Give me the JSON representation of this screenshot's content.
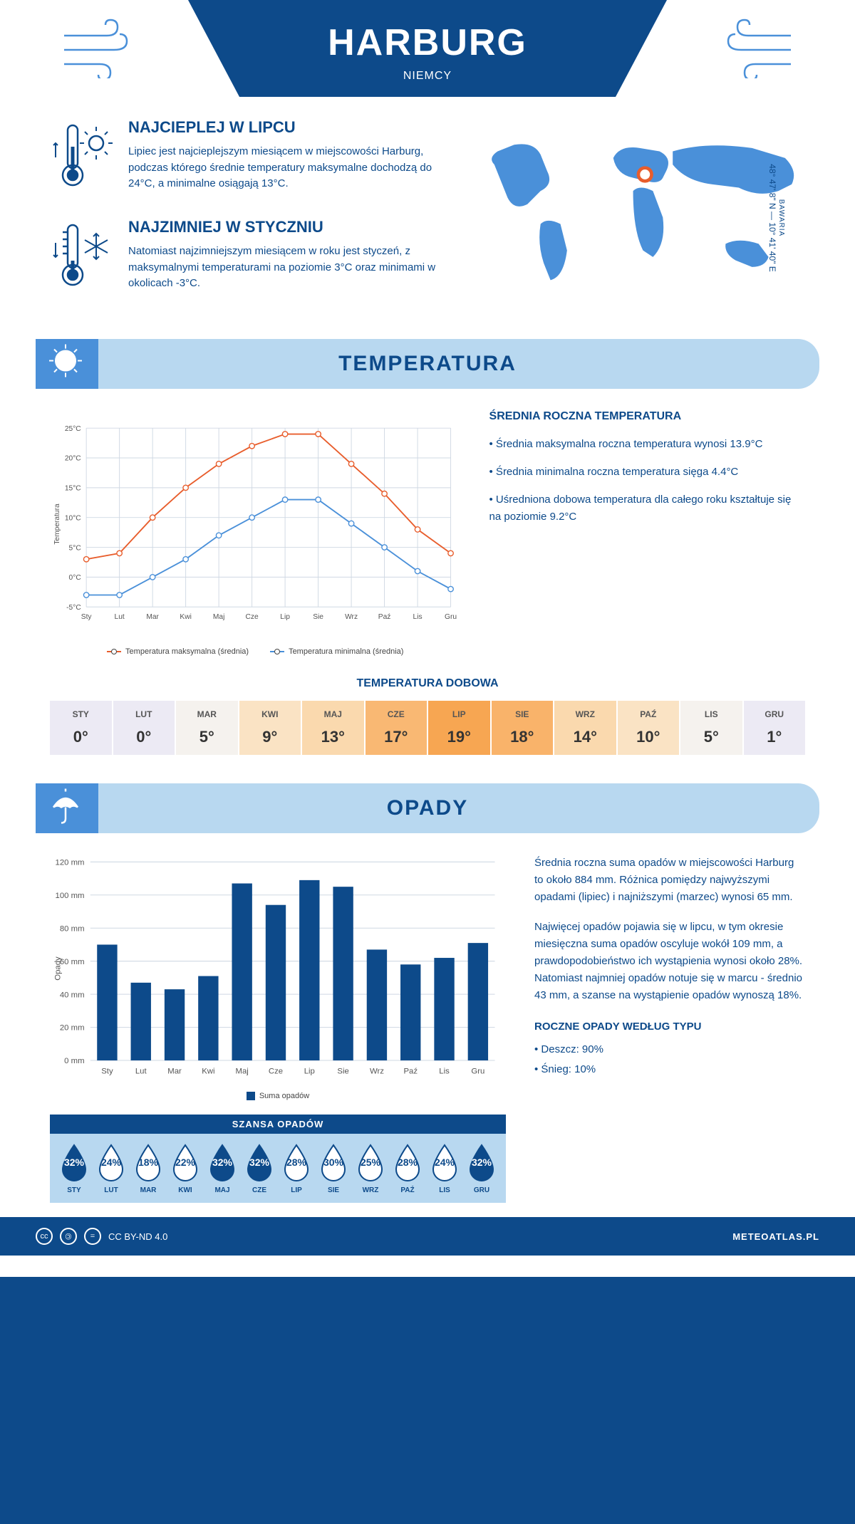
{
  "colors": {
    "primary": "#0d4a8a",
    "accent_light": "#b8d8f0",
    "accent_mid": "#4a90d9",
    "line_max": "#e85d2c",
    "line_min": "#4a90d9",
    "bar_fill": "#0d4a8a",
    "grid": "#cfd8e3",
    "map_land": "#4a90d9",
    "marker": "#e85d2c"
  },
  "header": {
    "city": "HARBURG",
    "country": "NIEMCY"
  },
  "intro": {
    "hot": {
      "title": "NAJCIEPLEJ W LIPCU",
      "body": "Lipiec jest najcieplejszym miesiącem w miejscowości Harburg, podczas którego średnie temperatury maksymalne dochodzą do 24°C, a minimalne osiągają 13°C."
    },
    "cold": {
      "title": "NAJZIMNIEJ W STYCZNIU",
      "body": "Natomiast najzimniejszym miesiącem w roku jest styczeń, z maksymalnymi temperaturami na poziomie 3°C oraz minimami w okolicach -3°C."
    },
    "coords_line": "48° 47' 8\" N — 10° 41' 40\" E",
    "region": "BAWARIA"
  },
  "temp_section": {
    "title": "TEMPERATURA",
    "chart": {
      "type": "line",
      "months": [
        "Sty",
        "Lut",
        "Mar",
        "Kwi",
        "Maj",
        "Cze",
        "Lip",
        "Sie",
        "Wrz",
        "Paź",
        "Lis",
        "Gru"
      ],
      "series_max": {
        "label": "Temperatura maksymalna (średnia)",
        "color": "#e85d2c",
        "values": [
          3,
          4,
          10,
          15,
          19,
          22,
          24,
          24,
          19,
          14,
          8,
          4
        ]
      },
      "series_min": {
        "label": "Temperatura minimalna (średnia)",
        "color": "#4a90d9",
        "values": [
          -3,
          -3,
          0,
          3,
          7,
          10,
          13,
          13,
          9,
          5,
          1,
          -2
        ]
      },
      "ylim": [
        -5,
        25
      ],
      "ytick_step": 5,
      "yformat": "°C",
      "ylabel": "Temperatura",
      "grid_color": "#cfd8e3",
      "background": "#ffffff",
      "line_width": 2,
      "marker": "circle",
      "marker_size": 4
    },
    "sidebar": {
      "title": "ŚREDNIA ROCZNA TEMPERATURA",
      "bullets": [
        "Średnia maksymalna roczna temperatura wynosi 13.9°C",
        "Średnia minimalna roczna temperatura sięga 4.4°C",
        "Uśredniona dobowa temperatura dla całego roku kształtuje się na poziomie 9.2°C"
      ]
    },
    "daily": {
      "title": "TEMPERATURA DOBOWA",
      "months": [
        "STY",
        "LUT",
        "MAR",
        "KWI",
        "MAJ",
        "CZE",
        "LIP",
        "SIE",
        "WRZ",
        "PAŹ",
        "LIS",
        "GRU"
      ],
      "values": [
        "0°",
        "0°",
        "5°",
        "9°",
        "13°",
        "17°",
        "19°",
        "18°",
        "14°",
        "10°",
        "5°",
        "1°"
      ],
      "cell_colors": [
        "#eceaf4",
        "#eceaf4",
        "#f5f2ee",
        "#fae3c4",
        "#fad9ae",
        "#f9b873",
        "#f7a652",
        "#f9b36a",
        "#fad9ae",
        "#fae3c4",
        "#f5f2ee",
        "#eceaf4"
      ]
    }
  },
  "precip_section": {
    "title": "OPADY",
    "chart": {
      "type": "bar",
      "months": [
        "Sty",
        "Lut",
        "Mar",
        "Kwi",
        "Maj",
        "Cze",
        "Lip",
        "Sie",
        "Wrz",
        "Paź",
        "Lis",
        "Gru"
      ],
      "values": [
        70,
        47,
        43,
        51,
        107,
        94,
        109,
        105,
        67,
        58,
        62,
        71
      ],
      "ylim": [
        0,
        120
      ],
      "ytick_step": 20,
      "yformat": " mm",
      "ylabel": "Opady",
      "bar_color": "#0d4a8a",
      "grid_color": "#cfd8e3",
      "bar_width": 0.6,
      "legend_label": "Suma opadów"
    },
    "text": {
      "p1": "Średnia roczna suma opadów w miejscowości Harburg to około 884 mm. Różnica pomiędzy najwyższymi opadami (lipiec) i najniższymi (marzec) wynosi 65 mm.",
      "p2": "Najwięcej opadów pojawia się w lipcu, w tym okresie miesięczna suma opadów oscyluje wokół 109 mm, a prawdopodobieństwo ich wystąpienia wynosi około 28%. Natomiast najmniej opadów notuje się w marcu - średnio 43 mm, a szanse na wystąpienie opadów wynoszą 18%."
    },
    "chance": {
      "title": "SZANSA OPADÓW",
      "months": [
        "STY",
        "LUT",
        "MAR",
        "KWI",
        "MAJ",
        "CZE",
        "LIP",
        "SIE",
        "WRZ",
        "PAŹ",
        "LIS",
        "GRU"
      ],
      "values": [
        "32%",
        "24%",
        "18%",
        "22%",
        "32%",
        "32%",
        "28%",
        "30%",
        "25%",
        "28%",
        "24%",
        "32%"
      ],
      "fill_flags": [
        true,
        false,
        false,
        false,
        true,
        true,
        false,
        false,
        false,
        false,
        false,
        true
      ],
      "drop_fill": "#0d4a8a",
      "drop_outline": "#0d4a8a",
      "drop_bg": "#ffffff"
    },
    "by_type": {
      "title": "ROCZNE OPADY WEDŁUG TYPU",
      "lines": [
        "Deszcz: 90%",
        "Śnieg: 10%"
      ]
    }
  },
  "footer": {
    "license": "CC BY-ND 4.0",
    "site": "METEOATLAS.PL"
  }
}
